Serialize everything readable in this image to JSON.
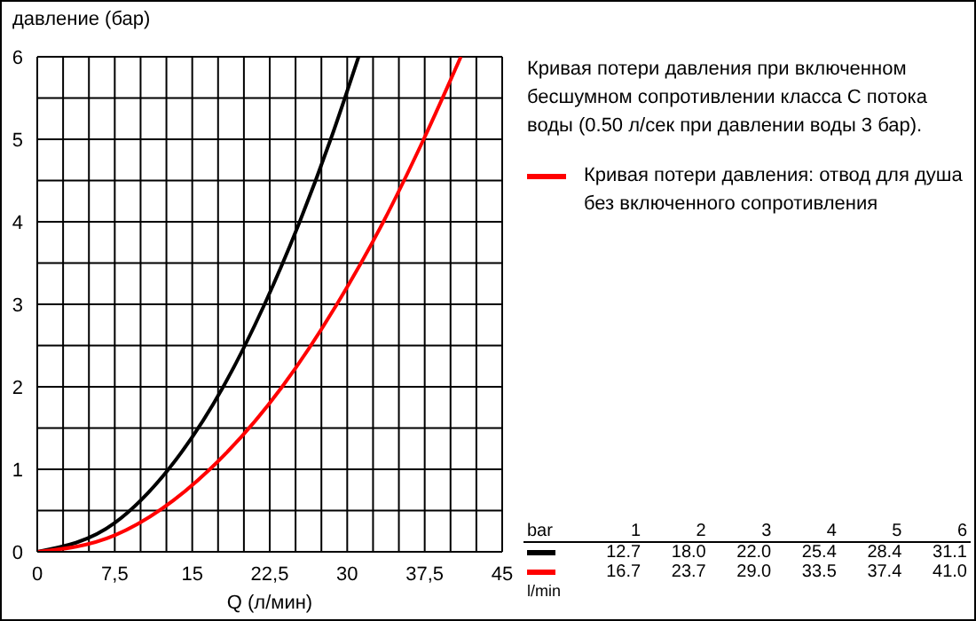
{
  "chart_data": {
    "type": "line",
    "ylabel": "давление (бар)",
    "xlabel": "Q (л/мин)",
    "xlim": [
      0,
      45
    ],
    "ylim": [
      0,
      6
    ],
    "xticks": [
      0,
      {
        "value": 2.5,
        "label": null
      },
      {
        "value": 5,
        "label": null
      },
      {
        "value": 7.5,
        "label": "7,5"
      },
      {
        "value": 10,
        "label": null
      },
      {
        "value": 12.5,
        "label": null
      },
      15,
      {
        "value": 17.5,
        "label": null
      },
      {
        "value": 20,
        "label": null
      },
      {
        "value": 22.5,
        "label": "22,5"
      },
      {
        "value": 25,
        "label": null
      },
      {
        "value": 27.5,
        "label": null
      },
      30,
      {
        "value": 32.5,
        "label": null
      },
      {
        "value": 35,
        "label": null
      },
      {
        "value": 37.5,
        "label": "37,5"
      },
      {
        "value": 40,
        "label": null
      },
      {
        "value": 42.5,
        "label": null
      },
      45
    ],
    "yticks": [
      0,
      {
        "value": 0.5,
        "label": null
      },
      1,
      {
        "value": 1.5,
        "label": null
      },
      2,
      {
        "value": 2.5,
        "label": null
      },
      3,
      {
        "value": 3.5,
        "label": null
      },
      4,
      {
        "value": 4.5,
        "label": null
      },
      5,
      {
        "value": 5.5,
        "label": null
      },
      6
    ],
    "grid": true,
    "legend": "right",
    "marker": "none",
    "line_style": "solid",
    "series": [
      {
        "name": "Кривая потери давления при включенном бесшумном сопротивлении класса C потока воды (0.50 л/сек при давлении воды 3 бар).",
        "color": "#000000",
        "x": [
          0,
          7.5,
          12.7,
          18.0,
          22.0,
          25.4,
          28.4,
          31.1
        ],
        "values": [
          0,
          0.35,
          1,
          2,
          3,
          4,
          5,
          6
        ]
      },
      {
        "name": "Кривая потери давления: отвод для душа без включенного сопротивления",
        "color": "#ff0000",
        "x": [
          0,
          7.5,
          16.7,
          23.7,
          29.0,
          33.5,
          37.4,
          41.0
        ],
        "values": [
          0,
          0.2,
          1,
          2,
          3,
          4,
          5,
          6
        ]
      }
    ],
    "annotations": [
      "bar",
      "1",
      "2",
      "3",
      "4",
      "5",
      "6",
      "12.7",
      "18.0",
      "22.0",
      "25.4",
      "28.4",
      "31.1",
      "16.7",
      "23.7",
      "29.0",
      "33.5",
      "37.4",
      "41.0",
      "l/min"
    ]
  }
}
